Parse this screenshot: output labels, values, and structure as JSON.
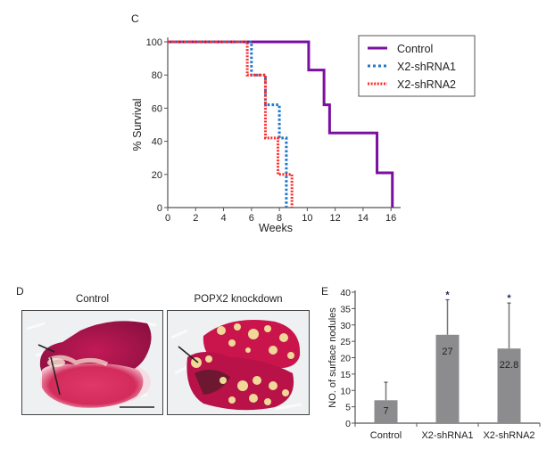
{
  "figure": {
    "panel_labels": {
      "c": "C",
      "d": "D",
      "e": "E"
    }
  },
  "colors": {
    "control": "#7b0fa0",
    "shrna1": "#1f78c8",
    "shrna2": "#ff2a2a",
    "bar": "#8c8c8e",
    "axis": "#555555"
  },
  "photos": {
    "control_title": "Control",
    "knockdown_title": "POPX2 knockdown",
    "scale_bar": "scale-bar"
  },
  "chart_data": [
    {
      "type": "line",
      "subtype": "kaplan-meier step",
      "panel": "C",
      "title": "",
      "xlabel": "Weeks",
      "ylabel": "% Survival",
      "xlim": [
        0,
        16.5
      ],
      "ylim": [
        0,
        100
      ],
      "xticks": [
        0,
        2,
        4,
        6,
        8,
        10,
        12,
        14,
        16
      ],
      "yticks": [
        0,
        20,
        40,
        60,
        80,
        100
      ],
      "legend_position": "top-right",
      "grid": false,
      "series": [
        {
          "name": "Control",
          "style": "solid",
          "color_key": "control",
          "x": [
            0,
            10.1,
            10.1,
            11.2,
            11.2,
            11.6,
            11.6,
            15.0,
            15.0,
            16.1,
            16.1
          ],
          "y": [
            100,
            100,
            83,
            83,
            62,
            62,
            45,
            45,
            21,
            21,
            0
          ]
        },
        {
          "name": "X2-shRNA1",
          "style": "dotted",
          "color_key": "shrna1",
          "x": [
            0,
            6.0,
            6.0,
            7.0,
            7.0,
            8.0,
            8.0,
            8.5,
            8.5
          ],
          "y": [
            100,
            100,
            80,
            80,
            62,
            62,
            42,
            42,
            0
          ]
        },
        {
          "name": "X2-shRNA2",
          "style": "dotted",
          "color_key": "shrna2",
          "x": [
            0,
            5.7,
            5.7,
            7.0,
            7.0,
            7.9,
            7.9,
            8.9,
            8.9
          ],
          "y": [
            100,
            100,
            80,
            80,
            42,
            42,
            20,
            20,
            0
          ]
        }
      ]
    },
    {
      "type": "bar",
      "panel": "E",
      "title": "",
      "xlabel": "",
      "ylabel": "NO. of surface nodules",
      "ylim": [
        0,
        40
      ],
      "yticks": [
        0,
        5,
        10,
        15,
        20,
        25,
        30,
        35,
        40
      ],
      "grid": false,
      "categories": [
        "Control",
        "X2-shRNA1",
        "X2-shRNA2"
      ],
      "values": [
        7,
        27,
        22.8
      ],
      "value_labels": [
        "7",
        "27",
        "22.8"
      ],
      "error_upper": [
        12.5,
        37.7,
        36.7
      ],
      "significance": [
        "",
        "*",
        "*"
      ]
    }
  ]
}
